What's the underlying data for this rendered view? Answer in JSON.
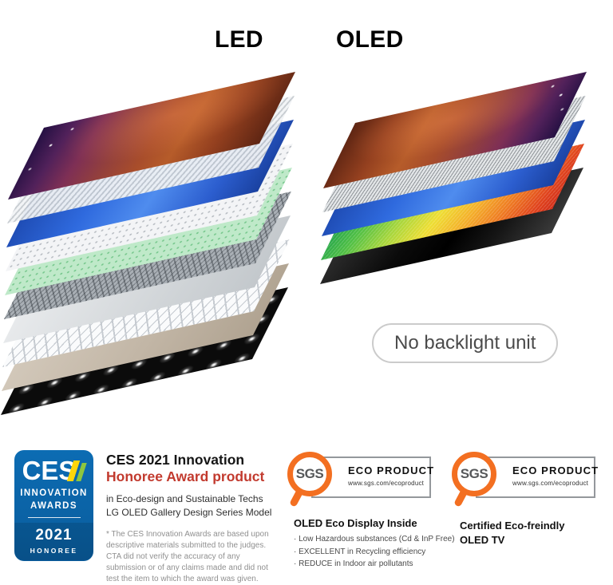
{
  "colors": {
    "ces_blue": "#0c6cb3",
    "ces_yellow": "#ffd60a",
    "ces_green": "#8dc63f",
    "award_red": "#c23a2e",
    "sgs_orange": "#f36f21",
    "pill_border": "#cbcbcb",
    "text_gray": "#909090"
  },
  "stacks": {
    "led": {
      "label": "LED",
      "layers": [
        {
          "name": "photo-layer",
          "type": "photo-led"
        },
        {
          "name": "striped-film-sheet",
          "type": "prism"
        },
        {
          "name": "blue-sheet",
          "type": "blue"
        },
        {
          "name": "white-dotted-sheet",
          "type": "dots-white"
        },
        {
          "name": "green-dotted-sheet",
          "type": "dots-green"
        },
        {
          "name": "dark-mesh-sheet",
          "type": "mesh-dark"
        },
        {
          "name": "light-gray-sheet",
          "type": "plain-light"
        },
        {
          "name": "silver-grid-sheet",
          "type": "grid-silver"
        },
        {
          "name": "beige-sheet",
          "type": "beige"
        },
        {
          "name": "black-backlight-sheet",
          "type": "backlight-black"
        }
      ]
    },
    "oled": {
      "label": "OLED",
      "layers": [
        {
          "name": "photo-layer",
          "type": "photo-oled"
        },
        {
          "name": "gray-hatch-sheet",
          "type": "hatch-gray"
        },
        {
          "name": "blue-sheet",
          "type": "blue"
        },
        {
          "name": "rainbow-sheet",
          "type": "rainbow"
        },
        {
          "name": "black-gloss-sheet",
          "type": "black-gloss"
        }
      ]
    }
  },
  "no_backlight": {
    "label": "No backlight unit"
  },
  "ces": {
    "badge": {
      "name": "CES",
      "innovation": "INNOVATION",
      "awards": "AWARDS",
      "year": "2021",
      "honoree": "HONOREE"
    },
    "title_line1": "CES 2021 Innovation",
    "title_line2": "Honoree Award product",
    "sub1": "in Eco-design and Sustainable Techs",
    "sub2": "LG OLED Gallery Design Series Model",
    "disclaimer": "* The CES Innovation Awards are based upon descriptive materials submitted to the judges. CTA did not verify the accuracy of any submission or of any claims made and did not test the item to which the award was given."
  },
  "sgs": {
    "logo_text": "SGS",
    "eco_product": "ECO PRODUCT",
    "url": "www.sgs.com/ecoproduct"
  },
  "eco_display": {
    "title": "OLED Eco Display Inside",
    "bullets": [
      "· Low Hazardous substances (Cd & InP Free)",
      "· EXCELLENT in Recycling efficiency",
      "· REDUCE in Indoor air pollutants"
    ]
  },
  "certified": {
    "line1": "Certified Eco-freindly",
    "line2": "OLED TV"
  }
}
